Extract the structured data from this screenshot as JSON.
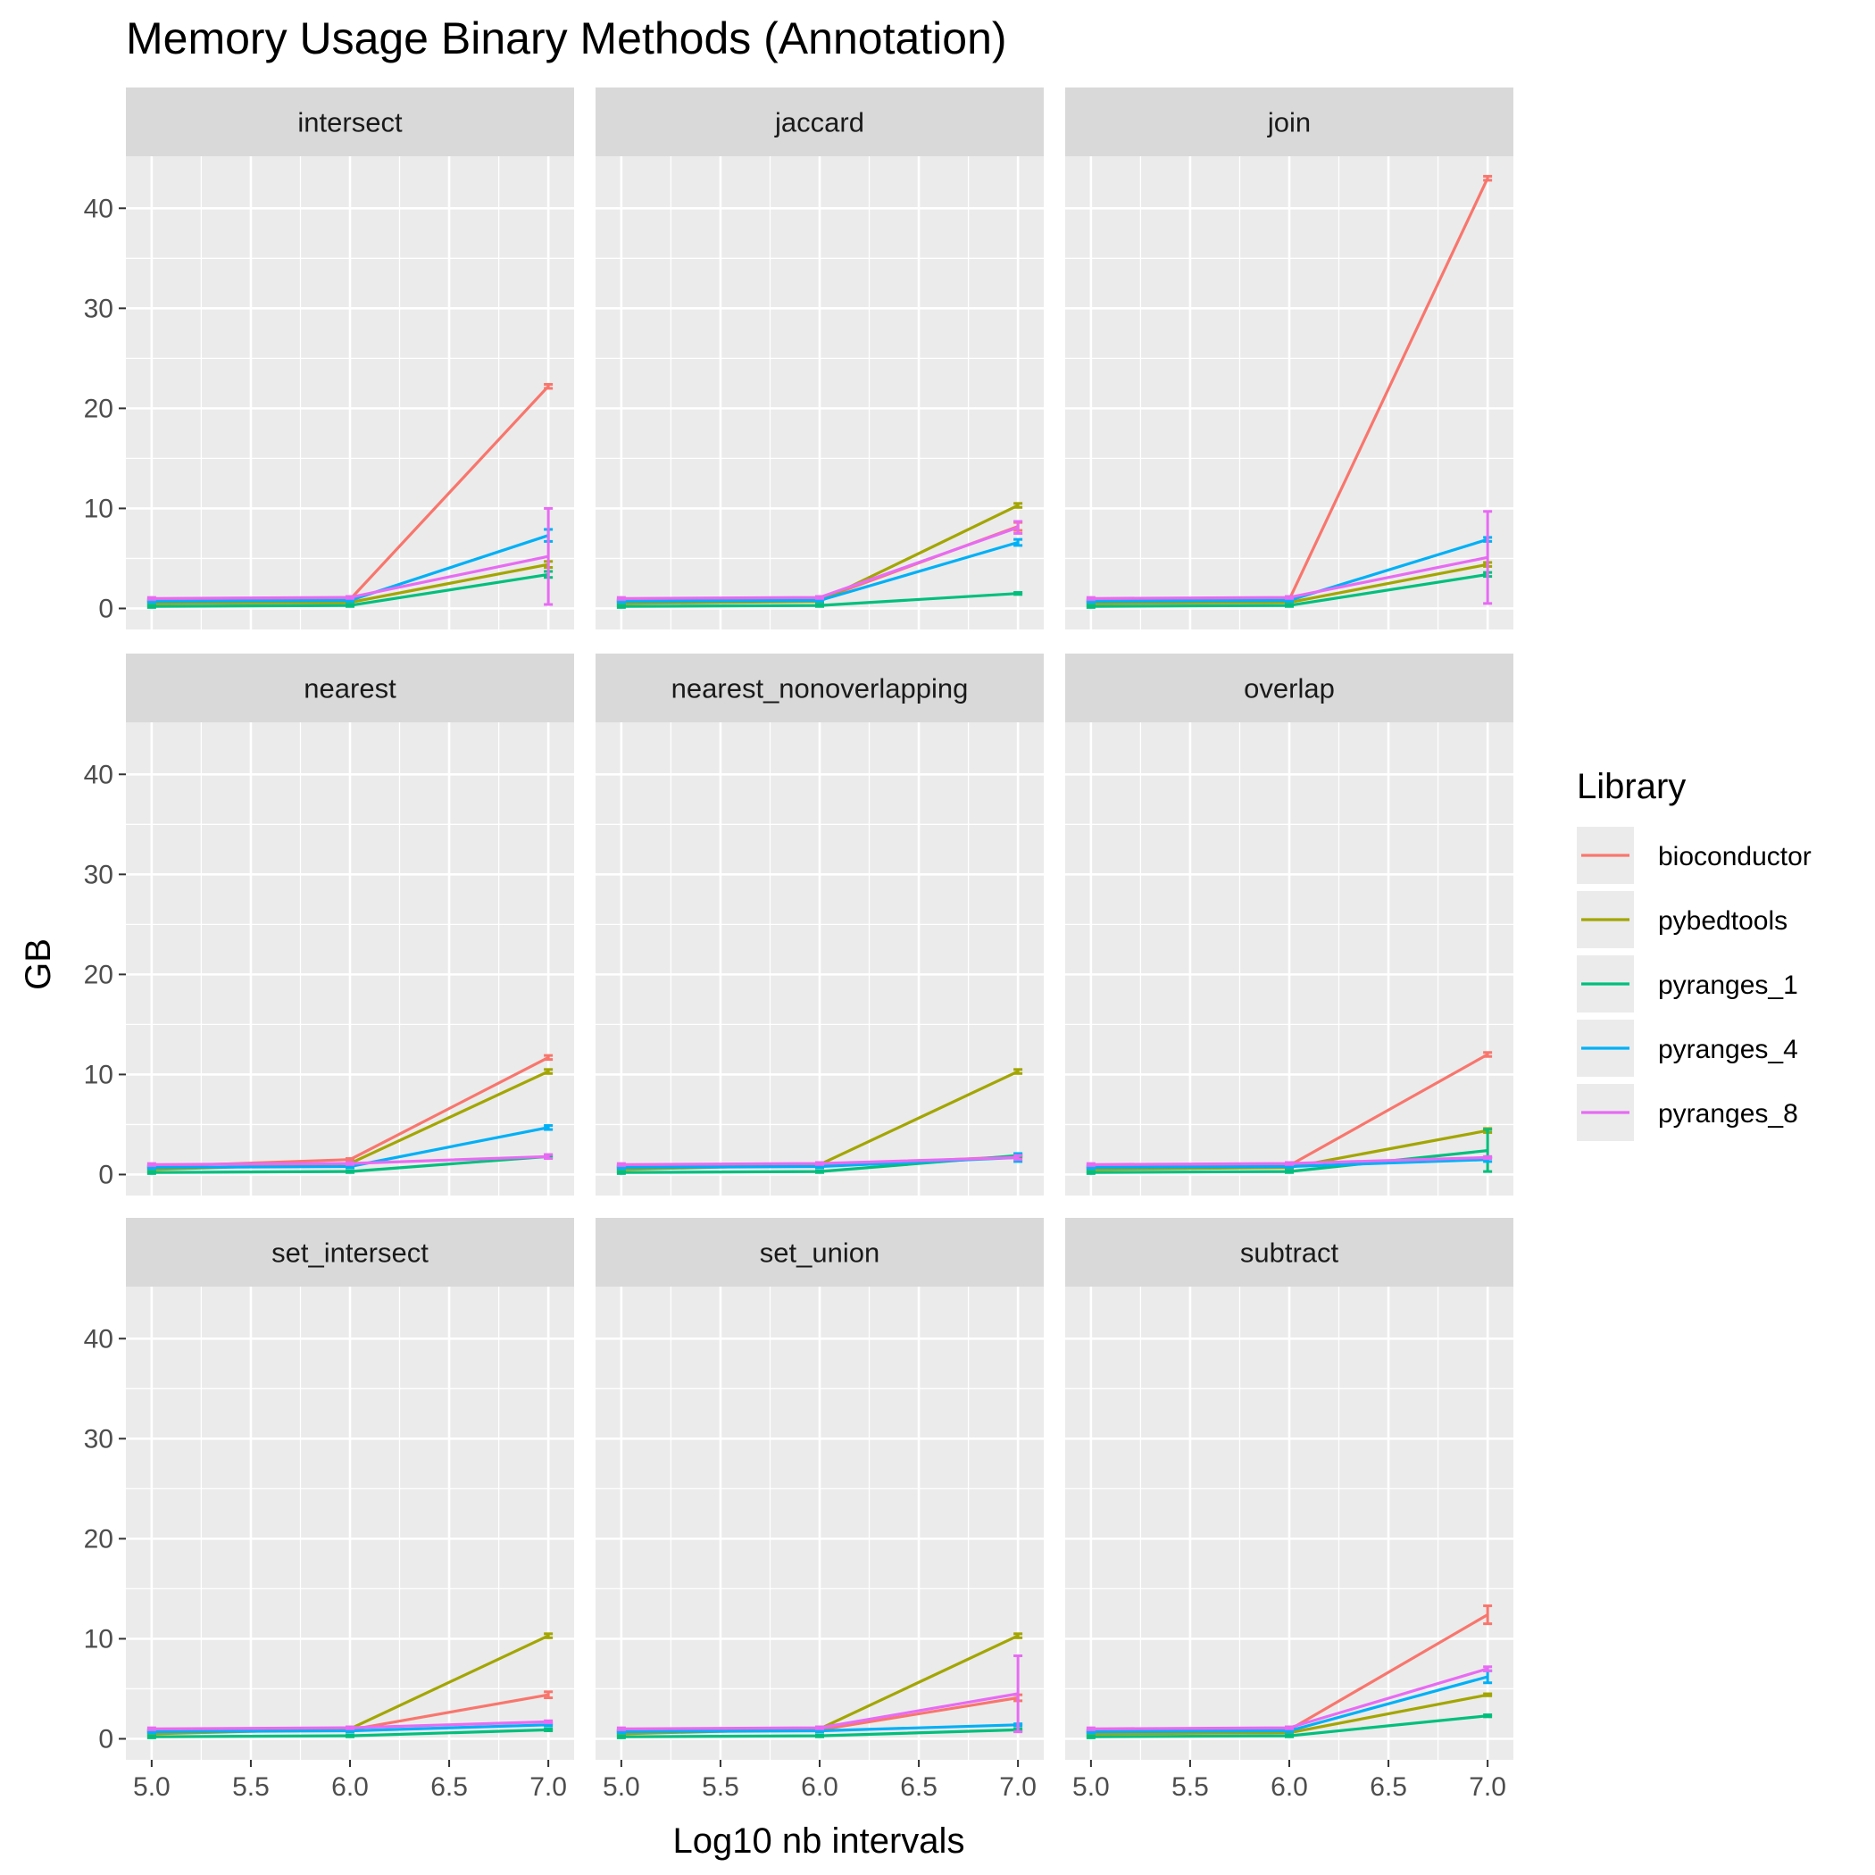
{
  "chart_data": {
    "type": "line",
    "title": "Memory Usage Binary Methods (Annotation)",
    "xlabel": "Log10 nb intervals",
    "ylabel": "GB",
    "xlim": [
      4.87,
      7.13
    ],
    "ylim": [
      -2.1,
      45.2
    ],
    "x_ticks": [
      5.0,
      5.5,
      6.0,
      6.5,
      7.0
    ],
    "x_tick_labels": [
      "5.0",
      "5.5",
      "6.0",
      "6.5",
      "7.0"
    ],
    "y_ticks": [
      0,
      10,
      20,
      30,
      40
    ],
    "y_tick_labels": [
      "0",
      "10",
      "20",
      "30",
      "40"
    ],
    "grid": true,
    "legend": {
      "title": "Library",
      "position": "right",
      "entries": [
        "bioconductor",
        "pybedtools",
        "pyranges_1",
        "pyranges_4",
        "pyranges_8"
      ]
    },
    "series_colors": {
      "bioconductor": "#F8766D",
      "pybedtools": "#A3A500",
      "pyranges_1": "#00BF7D",
      "pyranges_4": "#00B0F6",
      "pyranges_8": "#E76BF3"
    },
    "x": [
      5.0,
      6.0,
      7.0
    ],
    "panels": [
      {
        "name": "intersect",
        "series": [
          {
            "name": "bioconductor",
            "values": [
              0.8,
              0.9,
              22.2
            ],
            "error": [
              0.1,
              0.1,
              0.2
            ]
          },
          {
            "name": "pybedtools",
            "values": [
              0.5,
              0.6,
              4.4
            ],
            "error": [
              0.1,
              0.1,
              0.3
            ]
          },
          {
            "name": "pyranges_1",
            "values": [
              0.2,
              0.3,
              3.4
            ],
            "error": [
              0.1,
              0.1,
              0.3
            ]
          },
          {
            "name": "pyranges_4",
            "values": [
              0.7,
              0.8,
              7.3
            ],
            "error": [
              0.1,
              0.1,
              0.6
            ]
          },
          {
            "name": "pyranges_8",
            "values": [
              1.0,
              1.1,
              5.2
            ],
            "error": [
              0.1,
              0.1,
              4.8
            ]
          }
        ]
      },
      {
        "name": "jaccard",
        "series": [
          {
            "name": "bioconductor",
            "values": [
              0.8,
              0.9,
              8.2
            ],
            "error": [
              0.1,
              0.1,
              0.4
            ]
          },
          {
            "name": "pybedtools",
            "values": [
              0.5,
              0.7,
              10.3
            ],
            "error": [
              0.1,
              0.1,
              0.2
            ]
          },
          {
            "name": "pyranges_1",
            "values": [
              0.2,
              0.3,
              1.5
            ],
            "error": [
              0.1,
              0.1,
              0.1
            ]
          },
          {
            "name": "pyranges_4",
            "values": [
              0.7,
              0.8,
              6.6
            ],
            "error": [
              0.1,
              0.1,
              0.3
            ]
          },
          {
            "name": "pyranges_8",
            "values": [
              1.0,
              1.1,
              8.1
            ],
            "error": [
              0.1,
              0.1,
              0.6
            ]
          }
        ]
      },
      {
        "name": "join",
        "series": [
          {
            "name": "bioconductor",
            "values": [
              0.8,
              0.9,
              43.0
            ],
            "error": [
              0.1,
              0.1,
              0.2
            ]
          },
          {
            "name": "pybedtools",
            "values": [
              0.5,
              0.6,
              4.4
            ],
            "error": [
              0.1,
              0.1,
              0.2
            ]
          },
          {
            "name": "pyranges_1",
            "values": [
              0.2,
              0.3,
              3.4
            ],
            "error": [
              0.1,
              0.1,
              0.2
            ]
          },
          {
            "name": "pyranges_4",
            "values": [
              0.7,
              0.8,
              6.9
            ],
            "error": [
              0.1,
              0.1,
              0.2
            ]
          },
          {
            "name": "pyranges_8",
            "values": [
              1.0,
              1.1,
              5.1
            ],
            "error": [
              0.1,
              0.1,
              4.6
            ]
          }
        ]
      },
      {
        "name": "nearest",
        "series": [
          {
            "name": "bioconductor",
            "values": [
              0.8,
              1.5,
              11.7
            ],
            "error": [
              0.1,
              0.1,
              0.2
            ]
          },
          {
            "name": "pybedtools",
            "values": [
              0.5,
              1.1,
              10.3
            ],
            "error": [
              0.1,
              0.1,
              0.2
            ]
          },
          {
            "name": "pyranges_1",
            "values": [
              0.2,
              0.3,
              1.8
            ],
            "error": [
              0.1,
              0.1,
              0.1
            ]
          },
          {
            "name": "pyranges_4",
            "values": [
              0.7,
              0.8,
              4.7
            ],
            "error": [
              0.1,
              0.1,
              0.2
            ]
          },
          {
            "name": "pyranges_8",
            "values": [
              1.0,
              1.1,
              1.8
            ],
            "error": [
              0.1,
              0.1,
              0.2
            ]
          }
        ]
      },
      {
        "name": "nearest_nonoverlapping",
        "series": [
          {
            "name": "bioconductor",
            "values": [
              0.8,
              0.9,
              1.8
            ],
            "error": [
              0.1,
              0.1,
              0.1
            ]
          },
          {
            "name": "pybedtools",
            "values": [
              0.5,
              1.0,
              10.3
            ],
            "error": [
              0.1,
              0.1,
              0.2
            ]
          },
          {
            "name": "pyranges_1",
            "values": [
              0.2,
              0.3,
              1.9
            ],
            "error": [
              0.1,
              0.1,
              0.1
            ]
          },
          {
            "name": "pyranges_4",
            "values": [
              0.7,
              0.8,
              1.7
            ],
            "error": [
              0.1,
              0.1,
              0.4
            ]
          },
          {
            "name": "pyranges_8",
            "values": [
              1.0,
              1.1,
              1.7
            ],
            "error": [
              0.1,
              0.1,
              0.2
            ]
          }
        ]
      },
      {
        "name": "overlap",
        "series": [
          {
            "name": "bioconductor",
            "values": [
              0.8,
              0.9,
              12.0
            ],
            "error": [
              0.1,
              0.1,
              0.2
            ]
          },
          {
            "name": "pybedtools",
            "values": [
              0.5,
              0.7,
              4.4
            ],
            "error": [
              0.1,
              0.1,
              0.2
            ]
          },
          {
            "name": "pyranges_1",
            "values": [
              0.2,
              0.3,
              2.4
            ],
            "error": [
              0.1,
              0.1,
              2.1
            ]
          },
          {
            "name": "pyranges_4",
            "values": [
              0.7,
              0.8,
              1.5
            ],
            "error": [
              0.1,
              0.1,
              0.2
            ]
          },
          {
            "name": "pyranges_8",
            "values": [
              1.0,
              1.1,
              1.7
            ],
            "error": [
              0.1,
              0.1,
              0.1
            ]
          }
        ]
      },
      {
        "name": "set_intersect",
        "series": [
          {
            "name": "bioconductor",
            "values": [
              0.8,
              0.9,
              4.4
            ],
            "error": [
              0.1,
              0.1,
              0.3
            ]
          },
          {
            "name": "pybedtools",
            "values": [
              0.5,
              1.0,
              10.3
            ],
            "error": [
              0.1,
              0.1,
              0.2
            ]
          },
          {
            "name": "pyranges_1",
            "values": [
              0.2,
              0.3,
              0.9
            ],
            "error": [
              0.1,
              0.1,
              0.1
            ]
          },
          {
            "name": "pyranges_4",
            "values": [
              0.7,
              0.8,
              1.4
            ],
            "error": [
              0.1,
              0.1,
              0.1
            ]
          },
          {
            "name": "pyranges_8",
            "values": [
              1.0,
              1.1,
              1.7
            ],
            "error": [
              0.1,
              0.1,
              0.1
            ]
          }
        ]
      },
      {
        "name": "set_union",
        "series": [
          {
            "name": "bioconductor",
            "values": [
              0.8,
              0.9,
              4.1
            ],
            "error": [
              0.1,
              0.1,
              0.3
            ]
          },
          {
            "name": "pybedtools",
            "values": [
              0.5,
              1.0,
              10.3
            ],
            "error": [
              0.1,
              0.1,
              0.2
            ]
          },
          {
            "name": "pyranges_1",
            "values": [
              0.2,
              0.3,
              0.9
            ],
            "error": [
              0.1,
              0.1,
              0.1
            ]
          },
          {
            "name": "pyranges_4",
            "values": [
              0.7,
              0.8,
              1.4
            ],
            "error": [
              0.1,
              0.1,
              0.1
            ]
          },
          {
            "name": "pyranges_8",
            "values": [
              1.0,
              1.1,
              4.5
            ],
            "error": [
              0.1,
              0.1,
              3.8
            ]
          }
        ]
      },
      {
        "name": "subtract",
        "series": [
          {
            "name": "bioconductor",
            "values": [
              0.8,
              0.9,
              12.4
            ],
            "error": [
              0.1,
              0.1,
              0.9
            ]
          },
          {
            "name": "pybedtools",
            "values": [
              0.5,
              0.6,
              4.4
            ],
            "error": [
              0.1,
              0.1,
              0.1
            ]
          },
          {
            "name": "pyranges_1",
            "values": [
              0.2,
              0.3,
              2.3
            ],
            "error": [
              0.1,
              0.1,
              0.1
            ]
          },
          {
            "name": "pyranges_4",
            "values": [
              0.7,
              0.8,
              6.2
            ],
            "error": [
              0.1,
              0.1,
              0.6
            ]
          },
          {
            "name": "pyranges_8",
            "values": [
              1.0,
              1.1,
              7.0
            ],
            "error": [
              0.1,
              0.1,
              0.2
            ]
          }
        ]
      }
    ]
  }
}
